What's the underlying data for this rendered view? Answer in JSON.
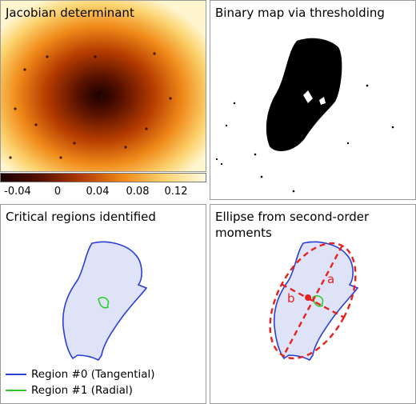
{
  "panels": {
    "jacobian": {
      "title": "Jacobian determinant"
    },
    "binary": {
      "title": "Binary map via thresholding"
    },
    "critical": {
      "title": "Critical regions identified"
    },
    "ellipse": {
      "title": "Ellipse from second-order moments"
    }
  },
  "colorbar": {
    "ticks": [
      "-0.04",
      "0",
      "0.04",
      "0.08",
      "0.12"
    ],
    "colors": [
      "#1a0000",
      "#5a1200",
      "#b63c00",
      "#f08a1a",
      "#fbd36e",
      "#fffbe0"
    ]
  },
  "legend": {
    "items": [
      {
        "label": "Region #0 (Tangential)",
        "color": "#2a3fd8"
      },
      {
        "label": "Region #1 (Radial)",
        "color": "#2ecc2e"
      }
    ]
  },
  "ellipse_labels": {
    "a": "a",
    "b": "b"
  },
  "colors": {
    "blue": "#2a3fd8",
    "green": "#2ecc2e",
    "red": "#e8201e",
    "fill": "#dfe3f7"
  }
}
